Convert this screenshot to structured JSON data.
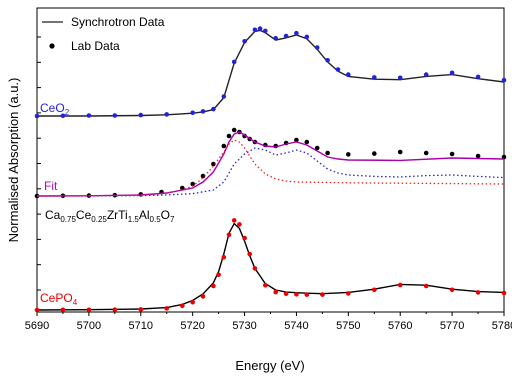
{
  "chart_data": {
    "type": "line",
    "title": "",
    "xlabel": "Energy (eV)",
    "ylabel": "Normalised Absorption (a.u.)",
    "xlim": [
      5690,
      5780
    ],
    "xticks": [
      5690,
      5700,
      5710,
      5720,
      5730,
      5740,
      5750,
      5760,
      5770,
      5780
    ],
    "grid": false,
    "legend": {
      "position": "top-left",
      "entries": [
        {
          "label": "Synchrotron Data",
          "marker": "line",
          "color": "#222222"
        },
        {
          "label": "Lab Data",
          "marker": "dot",
          "color": "#000000"
        }
      ]
    },
    "curve_labels": {
      "ceo2": {
        "text": "CeO",
        "sub": "2",
        "color": "#2222dd"
      },
      "fit": {
        "text": "Fit",
        "color": "#bb00bb"
      },
      "sample": {
        "parts": [
          [
            "Ca",
            ""
          ],
          [
            "0.75",
            "sub"
          ],
          [
            "Ce",
            ""
          ],
          [
            "0.25",
            "sub"
          ],
          [
            "ZrTi",
            ""
          ],
          [
            "1.5",
            "sub"
          ],
          [
            "Al",
            ""
          ],
          [
            "0.5",
            "sub"
          ],
          [
            "O",
            ""
          ],
          [
            "7",
            "sub"
          ]
        ],
        "color": "#000000"
      },
      "cepo4": {
        "text": "CePO",
        "sub": "4",
        "color": "#ee0000"
      }
    },
    "series": [
      {
        "name": "CeO2 (Synchrotron Data)",
        "group": "ceo2",
        "style": "line",
        "color": "#222222",
        "x": [
          5690,
          5700,
          5710,
          5715,
          5720,
          5722,
          5724,
          5726,
          5728,
          5730,
          5732,
          5733,
          5734,
          5736,
          5738,
          5740,
          5742,
          5744,
          5746,
          5748,
          5750,
          5755,
          5760,
          5765,
          5770,
          5775,
          5780
        ],
        "y": [
          0.0,
          0.0,
          0.02,
          0.05,
          0.12,
          0.18,
          0.28,
          0.8,
          2.3,
          3.2,
          3.68,
          3.72,
          3.62,
          3.3,
          3.4,
          3.52,
          3.36,
          2.9,
          2.35,
          1.95,
          1.72,
          1.6,
          1.58,
          1.72,
          1.8,
          1.62,
          1.48
        ]
      },
      {
        "name": "CeO2 (Lab Data)",
        "group": "ceo2",
        "style": "dots",
        "color": "#2222dd",
        "x": [
          5690,
          5695,
          5700,
          5705,
          5710,
          5715,
          5720,
          5722,
          5724,
          5726,
          5728,
          5730,
          5732,
          5733,
          5734,
          5736,
          5738,
          5740,
          5742,
          5744,
          5746,
          5748,
          5750,
          5755,
          5760,
          5765,
          5770,
          5775,
          5780
        ],
        "y": [
          0.0,
          0.01,
          0.02,
          0.02,
          0.04,
          0.07,
          0.14,
          0.2,
          0.3,
          0.85,
          2.35,
          3.25,
          3.75,
          3.8,
          3.7,
          3.38,
          3.48,
          3.6,
          3.44,
          2.98,
          2.42,
          2.02,
          1.8,
          1.68,
          1.66,
          1.8,
          1.88,
          1.7,
          1.56
        ]
      },
      {
        "name": "Sample (Lab Data)",
        "group": "sample",
        "style": "dots",
        "color": "#000000",
        "x": [
          5690,
          5695,
          5700,
          5705,
          5710,
          5714,
          5718,
          5720,
          5722,
          5724,
          5726,
          5727,
          5728,
          5729,
          5730,
          5731,
          5732,
          5734,
          5736,
          5738,
          5740,
          5742,
          5744,
          5746,
          5750,
          5755,
          5760,
          5765,
          5770,
          5775,
          5780
        ],
        "y": [
          0.0,
          0.01,
          0.02,
          0.04,
          0.08,
          0.2,
          0.4,
          0.6,
          1.0,
          1.6,
          2.5,
          3.0,
          3.3,
          3.2,
          3.0,
          2.85,
          2.7,
          2.55,
          2.5,
          2.65,
          2.8,
          2.7,
          2.4,
          2.15,
          2.08,
          2.12,
          2.2,
          2.15,
          2.1,
          2.0,
          1.95
        ]
      },
      {
        "name": "Fit",
        "group": "sample",
        "style": "line",
        "color": "#aa00aa",
        "x": [
          5690,
          5700,
          5710,
          5715,
          5720,
          5722,
          5724,
          5726,
          5727,
          5728,
          5729,
          5730,
          5732,
          5734,
          5736,
          5738,
          5740,
          5742,
          5744,
          5746,
          5748,
          5750,
          5760,
          5770,
          5780
        ],
        "y": [
          0.0,
          0.01,
          0.05,
          0.15,
          0.4,
          0.7,
          1.2,
          2.1,
          2.7,
          3.1,
          3.2,
          3.05,
          2.7,
          2.5,
          2.45,
          2.6,
          2.7,
          2.55,
          2.25,
          1.95,
          1.85,
          1.8,
          1.78,
          1.9,
          1.85
        ]
      },
      {
        "name": "Fit component (Ce4+)",
        "group": "sample",
        "style": "dotted",
        "color": "#2222dd",
        "x": [
          5690,
          5700,
          5710,
          5715,
          5720,
          5724,
          5726,
          5728,
          5730,
          5732,
          5734,
          5736,
          5738,
          5740,
          5742,
          5744,
          5746,
          5748,
          5750,
          5755,
          5760,
          5765,
          5770,
          5775,
          5780
        ],
        "y": [
          0.0,
          0.0,
          0.02,
          0.05,
          0.12,
          0.3,
          0.7,
          1.6,
          2.1,
          2.4,
          2.3,
          2.05,
          2.15,
          2.3,
          2.15,
          1.75,
          1.35,
          1.15,
          1.05,
          0.98,
          0.95,
          1.02,
          1.05,
          0.98,
          0.92
        ]
      },
      {
        "name": "Fit component (Ce3+)",
        "group": "sample",
        "style": "dotted",
        "color": "#ee2222",
        "x": [
          5690,
          5700,
          5710,
          5715,
          5718,
          5720,
          5722,
          5724,
          5726,
          5727,
          5728,
          5729,
          5730,
          5731,
          5732,
          5734,
          5736,
          5738,
          5740,
          5745,
          5750,
          5760,
          5770,
          5780
        ],
        "y": [
          0.0,
          0.01,
          0.05,
          0.15,
          0.3,
          0.5,
          0.9,
          1.5,
          2.2,
          2.6,
          2.8,
          2.7,
          2.4,
          2.0,
          1.6,
          1.1,
          0.85,
          0.75,
          0.7,
          0.68,
          0.66,
          0.64,
          0.62,
          0.6
        ]
      },
      {
        "name": "CePO4 (Synchrotron Data)",
        "group": "cepo4",
        "style": "line",
        "color": "#000000",
        "x": [
          5690,
          5700,
          5710,
          5715,
          5718,
          5720,
          5722,
          5724,
          5725,
          5726,
          5727,
          5728,
          5729,
          5730,
          5731,
          5732,
          5734,
          5736,
          5738,
          5740,
          5742,
          5745,
          5750,
          5755,
          5760,
          5765,
          5770,
          5775,
          5780
        ],
        "y": [
          0.0,
          0.02,
          0.06,
          0.15,
          0.35,
          0.6,
          1.0,
          1.7,
          2.4,
          3.5,
          4.8,
          5.4,
          5.1,
          4.3,
          3.4,
          2.6,
          1.65,
          1.25,
          1.12,
          1.08,
          1.05,
          1.02,
          1.1,
          1.3,
          1.6,
          1.55,
          1.3,
          1.15,
          1.1
        ]
      },
      {
        "name": "CePO4 (Lab Data)",
        "group": "cepo4",
        "style": "dots",
        "color": "#ee0000",
        "x": [
          5690,
          5695,
          5700,
          5705,
          5710,
          5715,
          5718,
          5720,
          5722,
          5724,
          5725,
          5726,
          5727,
          5728,
          5729,
          5730,
          5731,
          5732,
          5734,
          5736,
          5738,
          5740,
          5742,
          5745,
          5750,
          5755,
          5760,
          5765,
          5770,
          5775,
          5780
        ],
        "y": [
          0.0,
          0.01,
          0.01,
          0.02,
          0.04,
          0.1,
          0.26,
          0.48,
          0.85,
          1.5,
          2.2,
          3.3,
          4.7,
          5.6,
          5.35,
          4.5,
          3.5,
          2.6,
          1.55,
          1.12,
          1.02,
          0.98,
          0.96,
          0.96,
          1.04,
          1.26,
          1.56,
          1.5,
          1.26,
          1.1,
          1.06
        ]
      }
    ]
  }
}
